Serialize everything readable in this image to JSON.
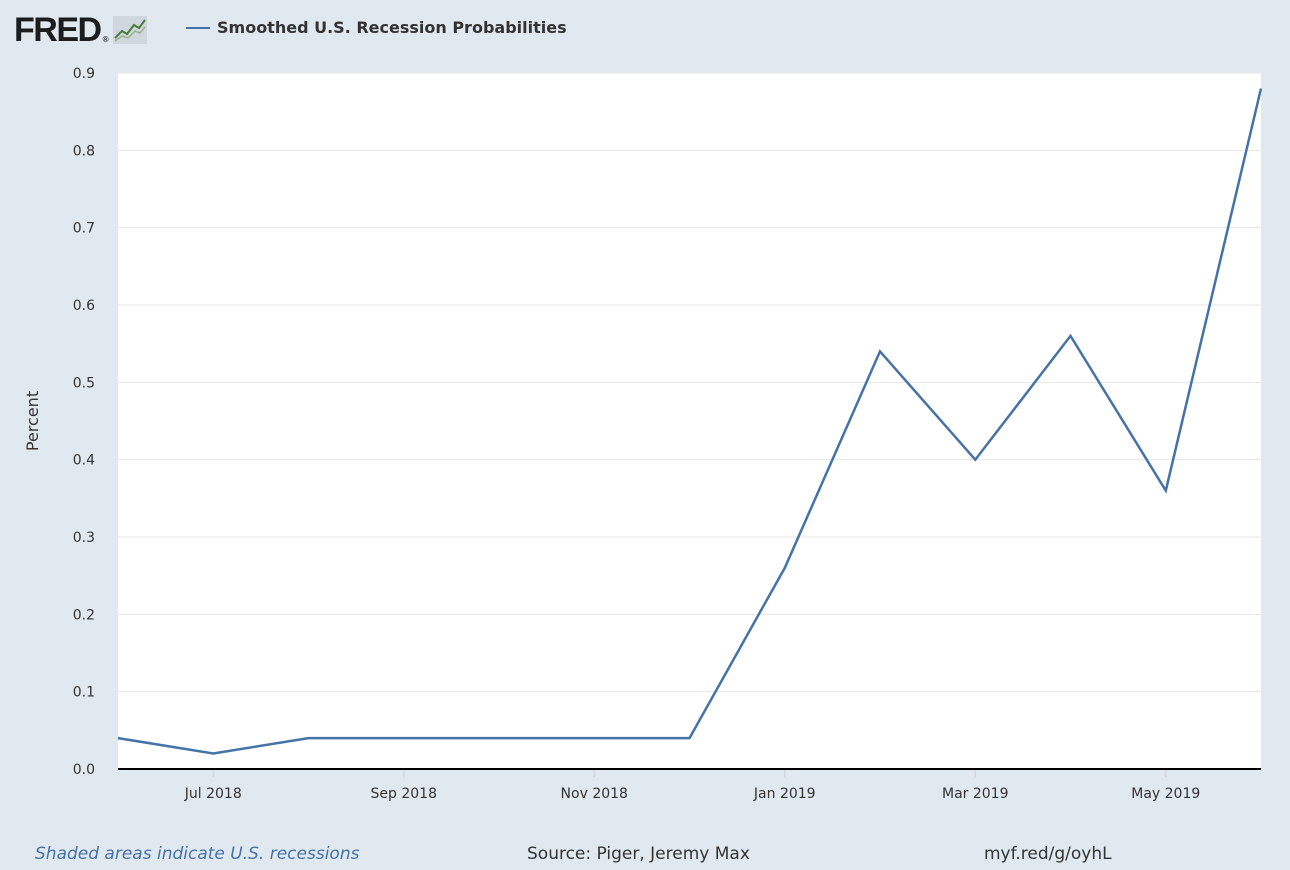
{
  "header": {
    "logo_text": "FRED",
    "logo_reg": "®",
    "logo_icon": "line-graph-icon"
  },
  "chart_data": {
    "type": "line",
    "series": [
      {
        "name": "Smoothed U.S. Recession Probabilities",
        "color": "#4572a7",
        "x": [
          "2018-06",
          "2018-07",
          "2018-08",
          "2018-09",
          "2018-10",
          "2018-11",
          "2018-12",
          "2019-01",
          "2019-02",
          "2019-03",
          "2019-04",
          "2019-05",
          "2019-06"
        ],
        "values": [
          0.04,
          0.02,
          0.04,
          0.04,
          0.04,
          0.04,
          0.04,
          0.26,
          0.54,
          0.4,
          0.56,
          0.36,
          0.88
        ]
      }
    ],
    "xlabel": "",
    "ylabel": "Percent",
    "ylim": [
      0,
      0.9
    ],
    "yticks": [
      "0.0",
      "0.1",
      "0.2",
      "0.3",
      "0.4",
      "0.5",
      "0.6",
      "0.7",
      "0.8",
      "0.9"
    ],
    "xticks": [
      {
        "label": "Jul 2018",
        "date": "2018-07"
      },
      {
        "label": "Sep 2018",
        "date": "2018-09"
      },
      {
        "label": "Nov 2018",
        "date": "2018-11"
      },
      {
        "label": "Jan 2019",
        "date": "2019-01"
      },
      {
        "label": "Mar 2019",
        "date": "2019-03"
      },
      {
        "label": "May 2019",
        "date": "2019-05"
      }
    ],
    "grid": true,
    "legend": "top-left"
  },
  "footer": {
    "note": "Shaded areas indicate U.S. recessions",
    "source": "Source: Piger, Jeremy Max",
    "link": "myf.red/g/oyhL"
  }
}
